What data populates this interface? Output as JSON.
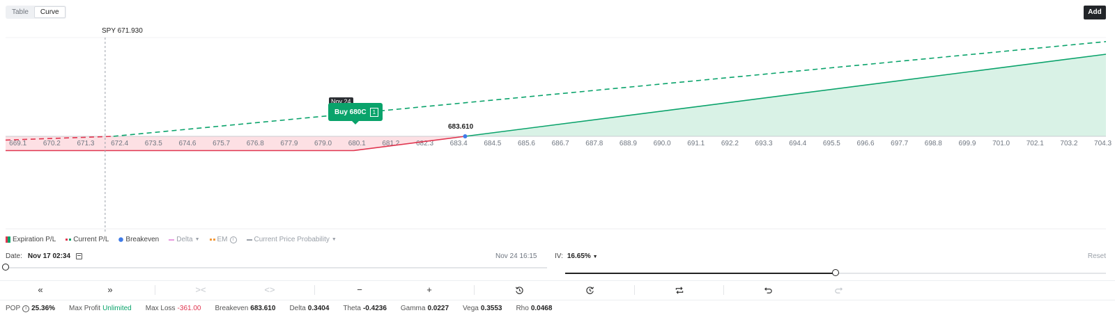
{
  "view_toggle": {
    "table": "Table",
    "curve": "Curve"
  },
  "add_button": "Add",
  "spot_label": "SPY 671.930",
  "tooltip": {
    "date": "Nov 24",
    "label": "Buy 680C",
    "qty": "1"
  },
  "breakeven_label": "683.610",
  "colors": {
    "profit": "#0aa36b",
    "loss": "#e0354f",
    "profit_fill": "#d9f2e6",
    "loss_fill": "#fde0e4",
    "breakeven_dot": "#3f7be8"
  },
  "chart_data": {
    "type": "line",
    "x_ticks": [
      "669.1",
      "670.2",
      "671.3",
      "672.4",
      "673.5",
      "674.6",
      "675.7",
      "676.8",
      "677.9",
      "679.0",
      "680.1",
      "681.2",
      "682.3",
      "683.4",
      "684.5",
      "685.6",
      "686.7",
      "687.8",
      "688.9",
      "690.0",
      "691.1",
      "692.2",
      "693.3",
      "694.4",
      "695.5",
      "696.6",
      "697.7",
      "698.8",
      "699.9",
      "701.0",
      "702.1",
      "703.2",
      "704.3"
    ],
    "xlim": [
      668.7,
      704.4
    ],
    "ylim": [
      -361,
      2090
    ],
    "spot": 671.93,
    "breakeven": 683.61,
    "series": [
      {
        "name": "Expiration P/L",
        "points": [
          [
            668.7,
            -361
          ],
          [
            680.0,
            -361
          ],
          [
            683.61,
            0
          ],
          [
            704.4,
            2079
          ]
        ]
      },
      {
        "name": "Current P/L",
        "points": [
          [
            668.7,
            -95
          ],
          [
            672.2,
            0
          ],
          [
            704.4,
            2400
          ]
        ]
      }
    ]
  },
  "legend": {
    "expiration_pl": "Expiration P/L",
    "current_pl": "Current P/L",
    "breakeven": "Breakeven",
    "delta": "Delta",
    "em": "EM",
    "current_price_prob": "Current Price Probability"
  },
  "date_control": {
    "label": "Date:",
    "value": "Nov 17 02:34",
    "end": "Nov 24 16:15",
    "position": 0.0
  },
  "iv_control": {
    "label": "IV:",
    "value": "16.65%",
    "position": 0.5
  },
  "reset": "Reset",
  "stats": {
    "pop_label": "POP",
    "pop": "25.36%",
    "max_profit_label": "Max Profit",
    "max_profit": "Unlimited",
    "max_loss_label": "Max Loss",
    "max_loss": "-361.00",
    "breakeven_label": "Breakeven",
    "breakeven": "683.610",
    "delta_label": "Delta",
    "delta": "0.3404",
    "theta_label": "Theta",
    "theta": "-0.4236",
    "gamma_label": "Gamma",
    "gamma": "0.0227",
    "vega_label": "Vega",
    "vega": "0.3553",
    "rho_label": "Rho",
    "rho": "0.0468"
  }
}
